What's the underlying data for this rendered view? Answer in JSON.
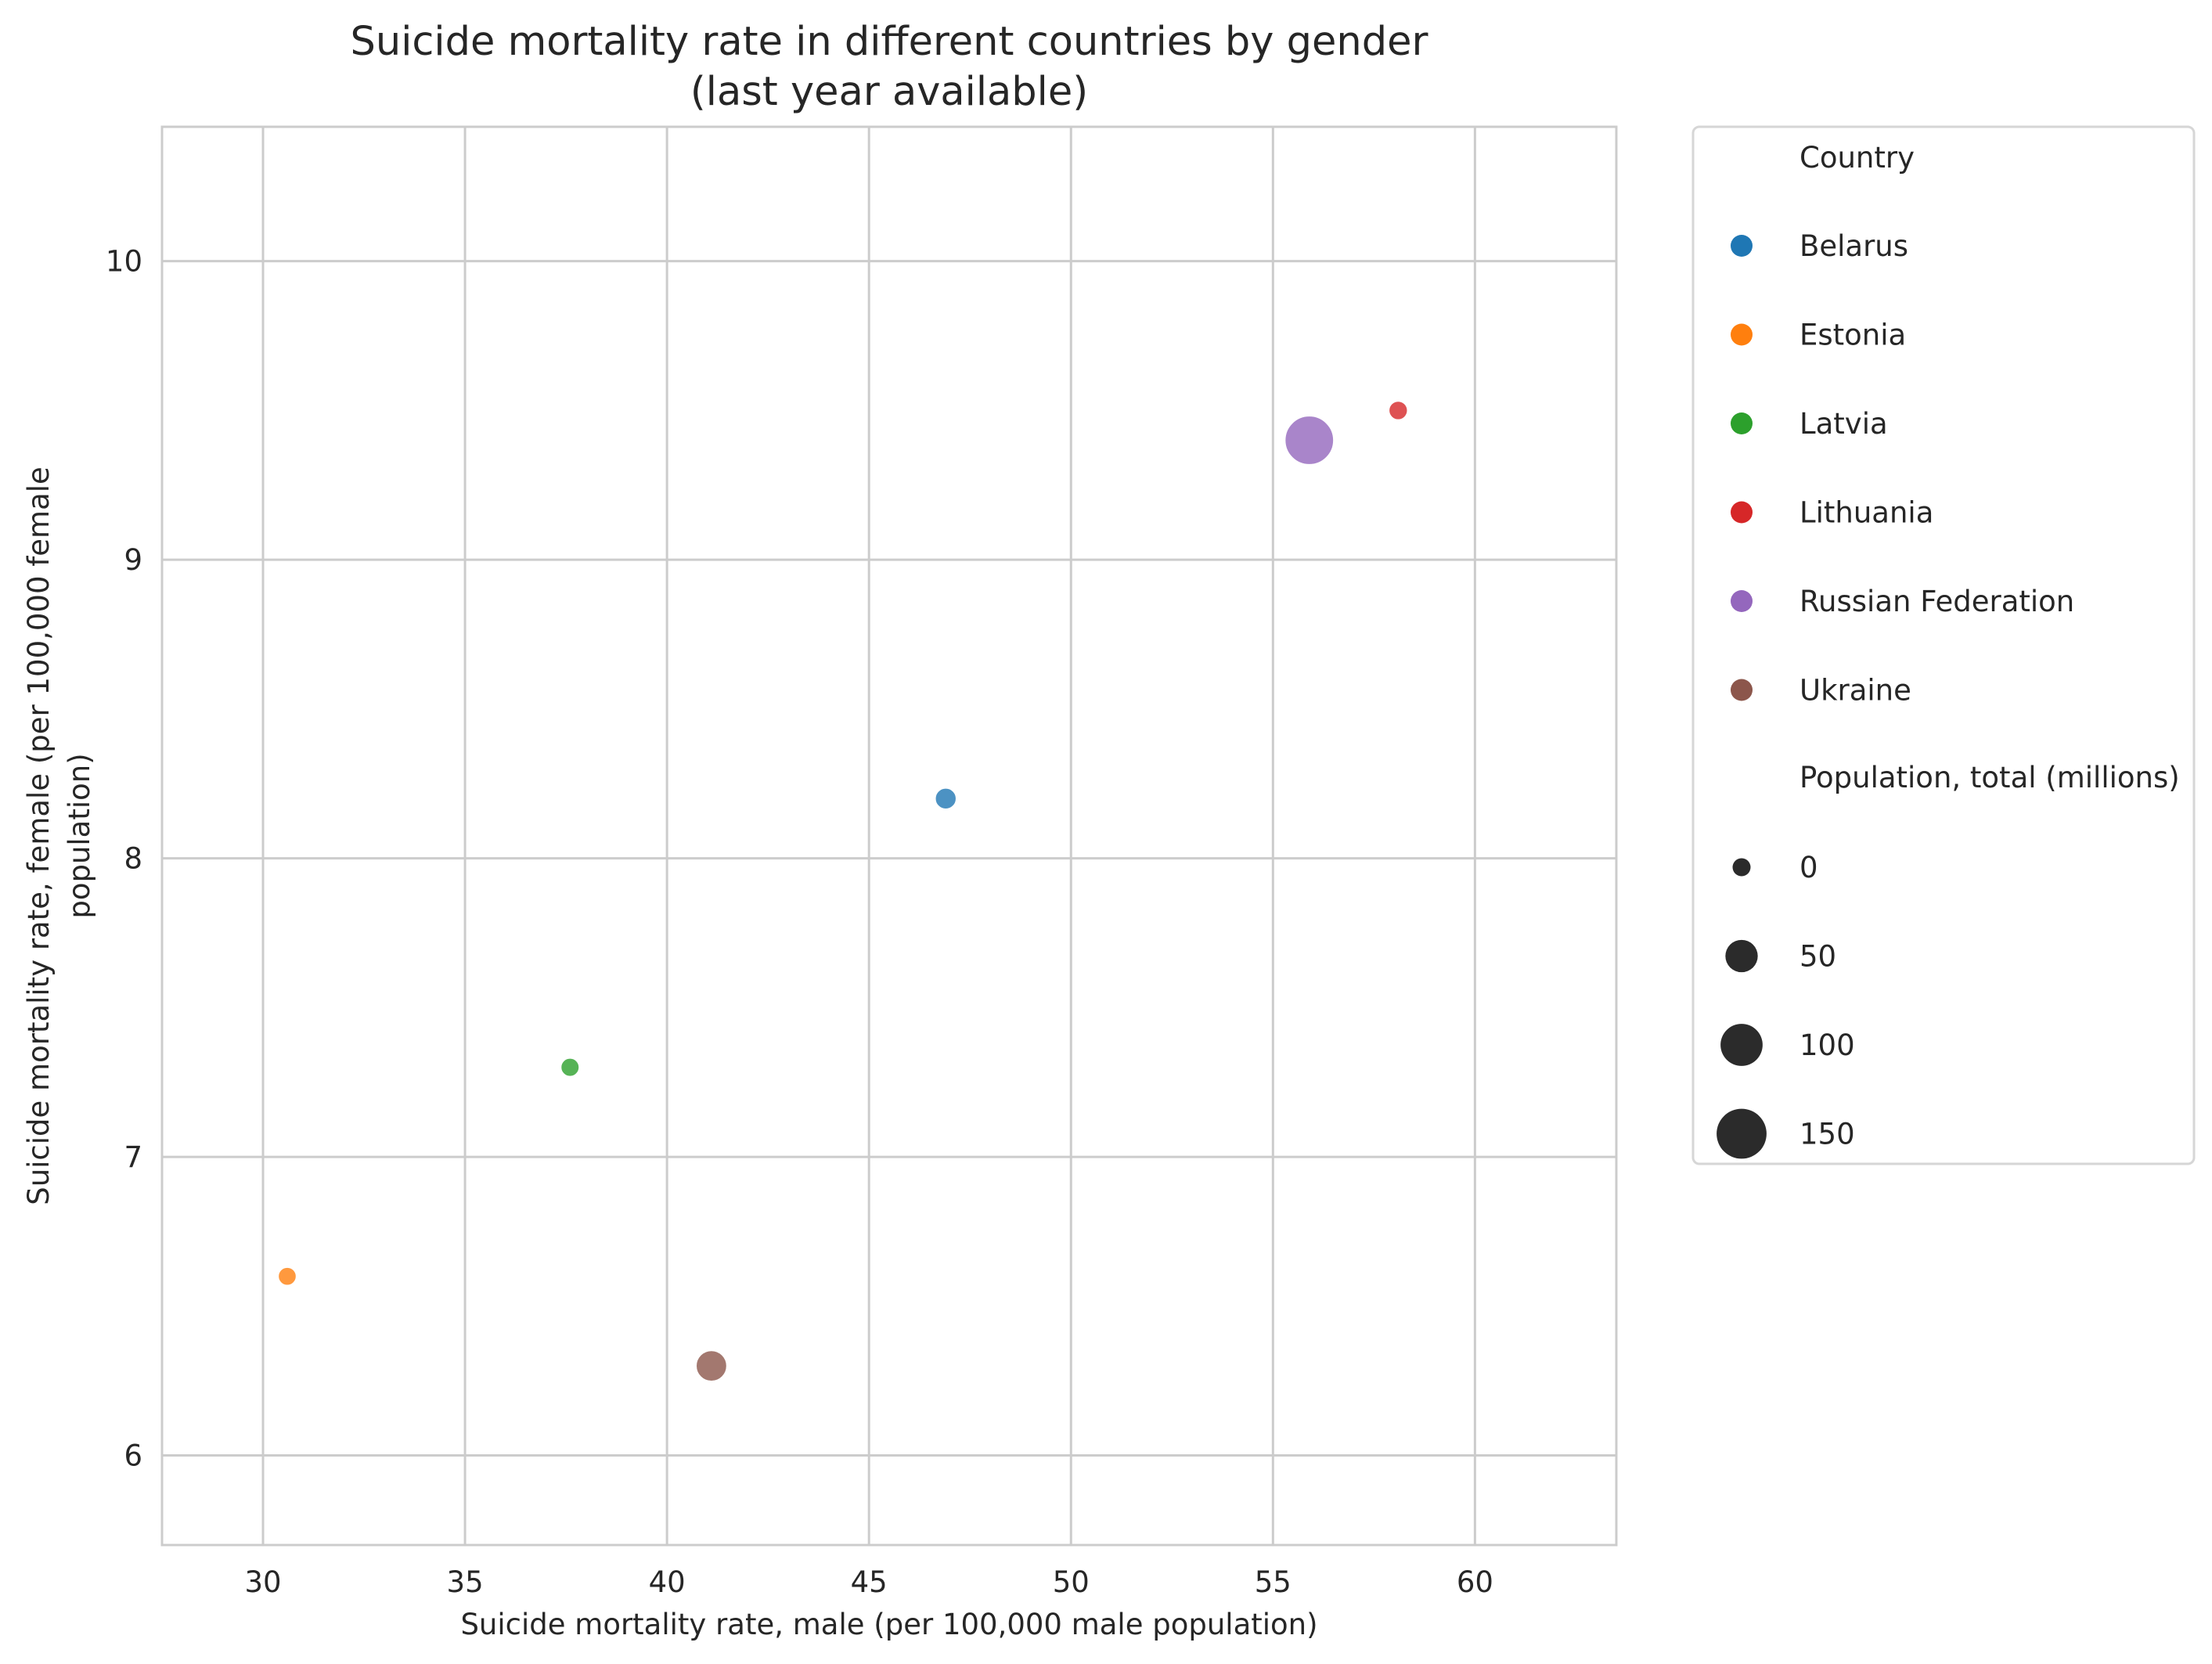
{
  "chart_data": {
    "type": "scatter",
    "title_lines": [
      "Suicide mortality rate in different countries by gender",
      "(last year available)"
    ],
    "xlabel": "Suicide mortality rate, male (per 100,000 male population)",
    "ylabel_lines": [
      "Suicide mortality rate, female (per 100,000 female",
      "population)"
    ],
    "xlim": [
      27.5,
      63.5
    ],
    "ylim": [
      5.7,
      10.45
    ],
    "xticks": [
      30,
      35,
      40,
      45,
      50,
      55,
      60
    ],
    "yticks": [
      6,
      7,
      8,
      9,
      10
    ],
    "grid": true,
    "legend_placement": "outside-right",
    "hue_title": "Country",
    "size_title": "Population, total (millions)",
    "points": [
      {
        "name": "Belarus",
        "x": 46.9,
        "y": 8.2,
        "population": 9.4,
        "color": "#1f77b4"
      },
      {
        "name": "Estonia",
        "x": 30.6,
        "y": 6.6,
        "population": 1.3,
        "color": "#ff7f0e"
      },
      {
        "name": "Latvia",
        "x": 37.6,
        "y": 7.3,
        "population": 1.9,
        "color": "#2ca02c"
      },
      {
        "name": "Lithuania",
        "x": 58.1,
        "y": 9.5,
        "population": 2.8,
        "color": "#d62728"
      },
      {
        "name": "Russian Federation",
        "x": 55.9,
        "y": 9.4,
        "population": 144.5,
        "color": "#9467bd"
      },
      {
        "name": "Ukraine",
        "x": 41.1,
        "y": 6.3,
        "population": 44.6,
        "color": "#8c564b"
      }
    ],
    "size_legend": [
      {
        "label": "0",
        "value": 0
      },
      {
        "label": "50",
        "value": 50
      },
      {
        "label": "100",
        "value": 100
      },
      {
        "label": "150",
        "value": 150
      }
    ],
    "size_legend_color": "#2b2b2b"
  }
}
